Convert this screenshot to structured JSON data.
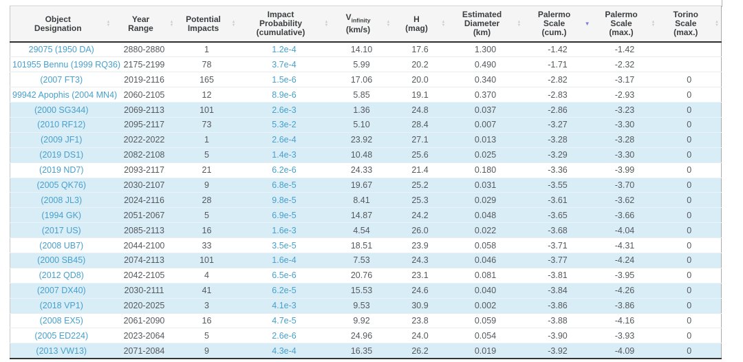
{
  "table": {
    "columns": [
      {
        "id": "designation",
        "label": "Object\nDesignation",
        "sort": "none",
        "link_cells": true
      },
      {
        "id": "year_range",
        "label": "Year\nRange",
        "sort": "none",
        "link_cells": false
      },
      {
        "id": "potential_impacts",
        "label": "Potential\nImpacts",
        "sort": "none",
        "link_cells": false
      },
      {
        "id": "impact_probability",
        "label": "Impact\nProbability\n(cumulative)",
        "sort": "none",
        "link_cells": true
      },
      {
        "id": "v_infinity",
        "label_prefix": "V",
        "label_sub": "infinity",
        "label_line2": "(km/s)",
        "sort": "none",
        "link_cells": false
      },
      {
        "id": "h_mag",
        "label": "H\n(mag)",
        "sort": "none",
        "link_cells": false
      },
      {
        "id": "est_diameter",
        "label": "Estimated\nDiameter\n(km)",
        "sort": "none",
        "link_cells": false
      },
      {
        "id": "palermo_cum",
        "label": "Palermo\nScale\n(cum.)",
        "sort": "desc",
        "link_cells": false
      },
      {
        "id": "palermo_max",
        "label": "Palermo\nScale\n(max.)",
        "sort": "none",
        "link_cells": false
      },
      {
        "id": "torino_max",
        "label": "Torino\nScale\n(max.)",
        "sort": "none",
        "link_cells": false
      }
    ],
    "rows": [
      {
        "designation": "29075 (1950 DA)",
        "year_range": "2880-2880",
        "potential_impacts": "1",
        "impact_probability": "1.2e-4",
        "v_infinity": "14.10",
        "h_mag": "17.6",
        "est_diameter": "1.300",
        "palermo_cum": "-1.42",
        "palermo_max": "-1.42",
        "torino_max": "",
        "highlighted": false
      },
      {
        "designation": "101955 Bennu (1999 RQ36)",
        "year_range": "2175-2199",
        "potential_impacts": "78",
        "impact_probability": "3.7e-4",
        "v_infinity": "5.99",
        "h_mag": "20.2",
        "est_diameter": "0.490",
        "palermo_cum": "-1.71",
        "palermo_max": "-2.32",
        "torino_max": "",
        "highlighted": false
      },
      {
        "designation": "(2007 FT3)",
        "year_range": "2019-2116",
        "potential_impacts": "165",
        "impact_probability": "1.5e-6",
        "v_infinity": "17.06",
        "h_mag": "20.0",
        "est_diameter": "0.340",
        "palermo_cum": "-2.82",
        "palermo_max": "-3.17",
        "torino_max": "0",
        "highlighted": false
      },
      {
        "designation": "99942 Apophis (2004 MN4)",
        "year_range": "2060-2105",
        "potential_impacts": "12",
        "impact_probability": "8.9e-6",
        "v_infinity": "5.85",
        "h_mag": "19.1",
        "est_diameter": "0.370",
        "palermo_cum": "-2.83",
        "palermo_max": "-2.93",
        "torino_max": "0",
        "highlighted": false
      },
      {
        "designation": "(2000 SG344)",
        "year_range": "2069-2113",
        "potential_impacts": "101",
        "impact_probability": "2.6e-3",
        "v_infinity": "1.36",
        "h_mag": "24.8",
        "est_diameter": "0.037",
        "palermo_cum": "-2.86",
        "palermo_max": "-3.23",
        "torino_max": "0",
        "highlighted": true
      },
      {
        "designation": "(2010 RF12)",
        "year_range": "2095-2117",
        "potential_impacts": "73",
        "impact_probability": "5.3e-2",
        "v_infinity": "5.10",
        "h_mag": "28.4",
        "est_diameter": "0.007",
        "palermo_cum": "-3.27",
        "palermo_max": "-3.30",
        "torino_max": "0",
        "highlighted": true
      },
      {
        "designation": "(2009 JF1)",
        "year_range": "2022-2022",
        "potential_impacts": "1",
        "impact_probability": "2.6e-4",
        "v_infinity": "23.92",
        "h_mag": "27.1",
        "est_diameter": "0.013",
        "palermo_cum": "-3.28",
        "palermo_max": "-3.28",
        "torino_max": "0",
        "highlighted": true
      },
      {
        "designation": "(2019 DS1)",
        "year_range": "2082-2108",
        "potential_impacts": "5",
        "impact_probability": "1.4e-3",
        "v_infinity": "10.48",
        "h_mag": "25.6",
        "est_diameter": "0.025",
        "palermo_cum": "-3.29",
        "palermo_max": "-3.30",
        "torino_max": "0",
        "highlighted": true
      },
      {
        "designation": "(2019 ND7)",
        "year_range": "2093-2117",
        "potential_impacts": "21",
        "impact_probability": "6.2e-6",
        "v_infinity": "24.33",
        "h_mag": "21.4",
        "est_diameter": "0.180",
        "palermo_cum": "-3.36",
        "palermo_max": "-3.99",
        "torino_max": "0",
        "highlighted": false
      },
      {
        "designation": "(2005 QK76)",
        "year_range": "2030-2107",
        "potential_impacts": "9",
        "impact_probability": "6.8e-5",
        "v_infinity": "19.67",
        "h_mag": "25.2",
        "est_diameter": "0.031",
        "palermo_cum": "-3.55",
        "palermo_max": "-3.70",
        "torino_max": "0",
        "highlighted": true
      },
      {
        "designation": "(2008 JL3)",
        "year_range": "2024-2116",
        "potential_impacts": "28",
        "impact_probability": "9.8e-5",
        "v_infinity": "8.41",
        "h_mag": "25.3",
        "est_diameter": "0.029",
        "palermo_cum": "-3.61",
        "palermo_max": "-3.62",
        "torino_max": "0",
        "highlighted": true
      },
      {
        "designation": "(1994 GK)",
        "year_range": "2051-2067",
        "potential_impacts": "5",
        "impact_probability": "6.9e-5",
        "v_infinity": "14.87",
        "h_mag": "24.2",
        "est_diameter": "0.048",
        "palermo_cum": "-3.65",
        "palermo_max": "-3.66",
        "torino_max": "0",
        "highlighted": true
      },
      {
        "designation": "(2017 US)",
        "year_range": "2085-2113",
        "potential_impacts": "16",
        "impact_probability": "1.6e-3",
        "v_infinity": "4.54",
        "h_mag": "26.0",
        "est_diameter": "0.022",
        "palermo_cum": "-3.68",
        "palermo_max": "-4.04",
        "torino_max": "0",
        "highlighted": true
      },
      {
        "designation": "(2008 UB7)",
        "year_range": "2044-2100",
        "potential_impacts": "33",
        "impact_probability": "3.5e-5",
        "v_infinity": "18.51",
        "h_mag": "23.9",
        "est_diameter": "0.058",
        "palermo_cum": "-3.71",
        "palermo_max": "-4.31",
        "torino_max": "0",
        "highlighted": false
      },
      {
        "designation": "(2000 SB45)",
        "year_range": "2074-2113",
        "potential_impacts": "101",
        "impact_probability": "1.6e-4",
        "v_infinity": "7.53",
        "h_mag": "24.3",
        "est_diameter": "0.046",
        "palermo_cum": "-3.77",
        "palermo_max": "-4.24",
        "torino_max": "0",
        "highlighted": true
      },
      {
        "designation": "(2012 QD8)",
        "year_range": "2042-2105",
        "potential_impacts": "4",
        "impact_probability": "6.5e-6",
        "v_infinity": "20.76",
        "h_mag": "23.1",
        "est_diameter": "0.081",
        "palermo_cum": "-3.81",
        "palermo_max": "-3.95",
        "torino_max": "0",
        "highlighted": false
      },
      {
        "designation": "(2007 DX40)",
        "year_range": "2030-2111",
        "potential_impacts": "41",
        "impact_probability": "6.2e-5",
        "v_infinity": "15.53",
        "h_mag": "24.6",
        "est_diameter": "0.040",
        "palermo_cum": "-3.84",
        "palermo_max": "-4.26",
        "torino_max": "0",
        "highlighted": true
      },
      {
        "designation": "(2018 VP1)",
        "year_range": "2020-2025",
        "potential_impacts": "3",
        "impact_probability": "4.1e-3",
        "v_infinity": "9.53",
        "h_mag": "30.9",
        "est_diameter": "0.002",
        "palermo_cum": "-3.86",
        "palermo_max": "-3.86",
        "torino_max": "0",
        "highlighted": true
      },
      {
        "designation": "(2008 EX5)",
        "year_range": "2061-2090",
        "potential_impacts": "16",
        "impact_probability": "4.7e-5",
        "v_infinity": "9.92",
        "h_mag": "23.8",
        "est_diameter": "0.059",
        "palermo_cum": "-3.88",
        "palermo_max": "-4.16",
        "torino_max": "0",
        "highlighted": false
      },
      {
        "designation": "(2005 ED224)",
        "year_range": "2023-2064",
        "potential_impacts": "5",
        "impact_probability": "2.6e-6",
        "v_infinity": "24.96",
        "h_mag": "24.0",
        "est_diameter": "0.054",
        "palermo_cum": "-3.90",
        "palermo_max": "-3.93",
        "torino_max": "0",
        "highlighted": false
      },
      {
        "designation": "(2013 VW13)",
        "year_range": "2071-2084",
        "potential_impacts": "9",
        "impact_probability": "4.3e-4",
        "v_infinity": "16.35",
        "h_mag": "26.2",
        "est_diameter": "0.019",
        "palermo_cum": "-3.92",
        "palermo_max": "-4.09",
        "torino_max": "0",
        "highlighted": true
      }
    ]
  },
  "colors": {
    "link": "#47a0ce",
    "highlight_row_bg": "#d9edf7",
    "header_bg": "#f5f5f5",
    "header_text": "#3b3e40",
    "cell_text": "#55595c",
    "sort_active_arrow": "#7d81d8",
    "sort_inactive_arrow": "#ccced1",
    "header_underline": "#2e2e2e"
  },
  "icons": {
    "sort_both": "sort-both-icon",
    "sort_desc": "sort-desc-icon"
  }
}
